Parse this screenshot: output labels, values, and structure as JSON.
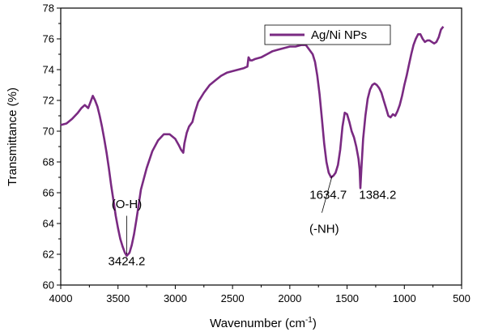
{
  "chart_data": {
    "type": "line",
    "xlabel": "Wavenumber (cm",
    "xlabel_sup": "-1",
    "xlabel_end": ")",
    "ylabel": "Transmittance (%)",
    "xlim": [
      4000,
      500
    ],
    "ylim": [
      60,
      78
    ],
    "x_reversed": true,
    "grid": false,
    "legend_position": "top-right",
    "x_ticks": [
      4000,
      3500,
      3000,
      2500,
      2000,
      1500,
      1000,
      500
    ],
    "x_tick_labels": [
      "4000",
      "3500",
      "3000",
      "2500",
      "2000",
      "1500",
      "1000",
      "500"
    ],
    "y_ticks": [
      60,
      62,
      64,
      66,
      68,
      70,
      72,
      74,
      76,
      78
    ],
    "y_tick_labels": [
      "60",
      "62",
      "64",
      "66",
      "68",
      "70",
      "72",
      "74",
      "76",
      "78"
    ],
    "series": [
      {
        "name": "Ag/Ni NPs",
        "color": "#7a2a82",
        "x": [
          4000,
          3950,
          3900,
          3850,
          3820,
          3790,
          3760,
          3740,
          3720,
          3700,
          3680,
          3660,
          3640,
          3620,
          3600,
          3580,
          3560,
          3540,
          3520,
          3500,
          3480,
          3460,
          3440,
          3424,
          3400,
          3380,
          3360,
          3340,
          3320,
          3300,
          3250,
          3200,
          3150,
          3100,
          3050,
          3000,
          2970,
          2950,
          2930,
          2920,
          2900,
          2880,
          2860,
          2850,
          2830,
          2800,
          2750,
          2700,
          2650,
          2600,
          2550,
          2500,
          2450,
          2400,
          2370,
          2360,
          2345,
          2330,
          2300,
          2250,
          2200,
          2150,
          2100,
          2050,
          2000,
          1950,
          1900,
          1860,
          1840,
          1800,
          1780,
          1760,
          1740,
          1720,
          1700,
          1680,
          1660,
          1640,
          1620,
          1600,
          1580,
          1560,
          1540,
          1520,
          1500,
          1480,
          1460,
          1440,
          1420,
          1400,
          1390,
          1384,
          1375,
          1360,
          1340,
          1320,
          1300,
          1280,
          1260,
          1240,
          1220,
          1200,
          1180,
          1160,
          1140,
          1120,
          1100,
          1080,
          1060,
          1040,
          1020,
          1000,
          980,
          960,
          940,
          920,
          900,
          880,
          860,
          840,
          820,
          800,
          780,
          760,
          740,
          720,
          700,
          680,
          660
        ],
        "y": [
          70.4,
          70.5,
          70.8,
          71.2,
          71.5,
          71.7,
          71.5,
          71.9,
          72.3,
          72.0,
          71.6,
          71.0,
          70.3,
          69.5,
          68.6,
          67.6,
          66.5,
          65.5,
          64.5,
          63.7,
          63.0,
          62.5,
          62.1,
          61.9,
          62.1,
          62.6,
          63.3,
          64.2,
          65.2,
          66.2,
          67.6,
          68.7,
          69.4,
          69.8,
          69.8,
          69.5,
          69.1,
          68.8,
          68.6,
          69.2,
          69.9,
          70.3,
          70.5,
          70.6,
          71.2,
          71.9,
          72.5,
          73.0,
          73.3,
          73.6,
          73.8,
          73.9,
          74.0,
          74.1,
          74.2,
          74.8,
          74.6,
          74.6,
          74.7,
          74.8,
          75.0,
          75.2,
          75.3,
          75.4,
          75.5,
          75.5,
          75.6,
          75.6,
          75.4,
          75.0,
          74.5,
          73.6,
          72.4,
          70.8,
          69.2,
          68.0,
          67.3,
          67.0,
          67.1,
          67.3,
          67.8,
          68.8,
          70.3,
          71.2,
          71.1,
          70.6,
          70.0,
          69.6,
          69.0,
          68.2,
          67.5,
          66.3,
          67.6,
          69.5,
          71.0,
          72.1,
          72.7,
          73.0,
          73.1,
          73.0,
          72.8,
          72.5,
          72.0,
          71.5,
          71.0,
          70.9,
          71.1,
          71.0,
          71.3,
          71.7,
          72.3,
          73.0,
          73.6,
          74.3,
          75.0,
          75.6,
          76.0,
          76.3,
          76.3,
          76.0,
          75.8,
          75.9,
          75.9,
          75.8,
          75.7,
          75.8,
          76.1,
          76.6,
          76.8
        ]
      }
    ],
    "annotations": [
      {
        "text": "(O-H)"
      },
      {
        "text": "3424.2"
      },
      {
        "text": "1634.7"
      },
      {
        "text": "(-NH)"
      },
      {
        "text": "1384.2"
      }
    ]
  }
}
